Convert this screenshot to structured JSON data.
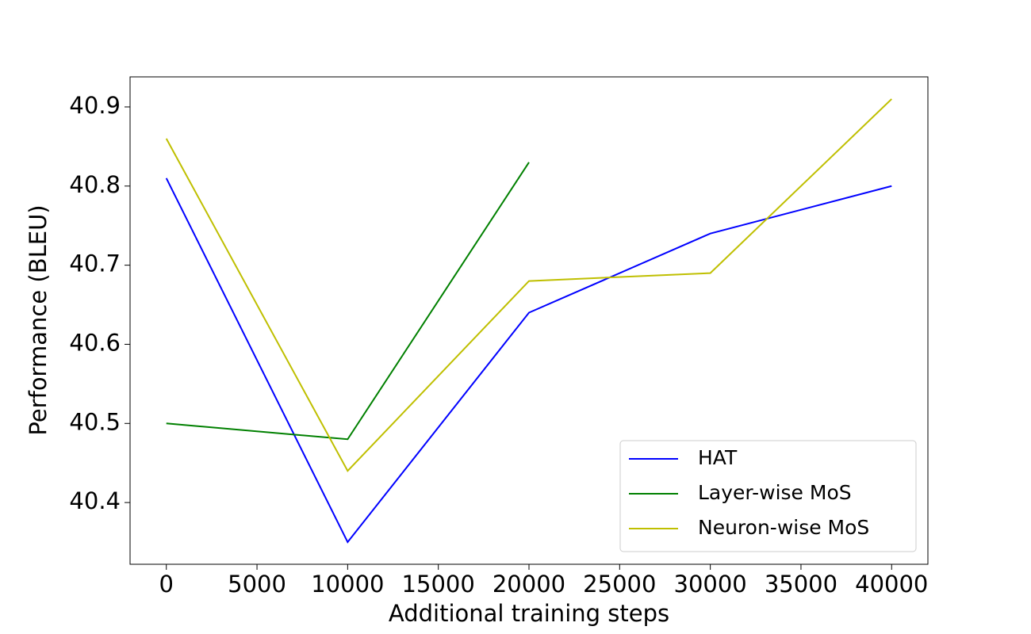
{
  "chart_data": {
    "type": "line",
    "x_label": "Additional training steps",
    "y_label": "Performance (BLEU)",
    "x": [
      0,
      10000,
      20000,
      30000,
      40000
    ],
    "series": [
      {
        "name": "HAT",
        "color": "#0000ff",
        "values": [
          40.81,
          40.35,
          40.64,
          40.74,
          40.8
        ]
      },
      {
        "name": "Layer-wise MoS",
        "color": "#008000",
        "values": [
          40.5,
          40.48,
          40.83,
          null,
          null
        ]
      },
      {
        "name": "Neuron-wise MoS",
        "color": "#bfbf00",
        "values": [
          40.86,
          40.44,
          40.68,
          40.69,
          40.91
        ]
      }
    ],
    "xlim": [
      -2000,
      42000
    ],
    "ylim": [
      40.322,
      40.938
    ],
    "xticks": [
      0,
      5000,
      10000,
      15000,
      20000,
      25000,
      30000,
      35000,
      40000
    ],
    "yticks": [
      40.4,
      40.5,
      40.6,
      40.7,
      40.8,
      40.9
    ],
    "grid": false,
    "legend": "lower right"
  }
}
